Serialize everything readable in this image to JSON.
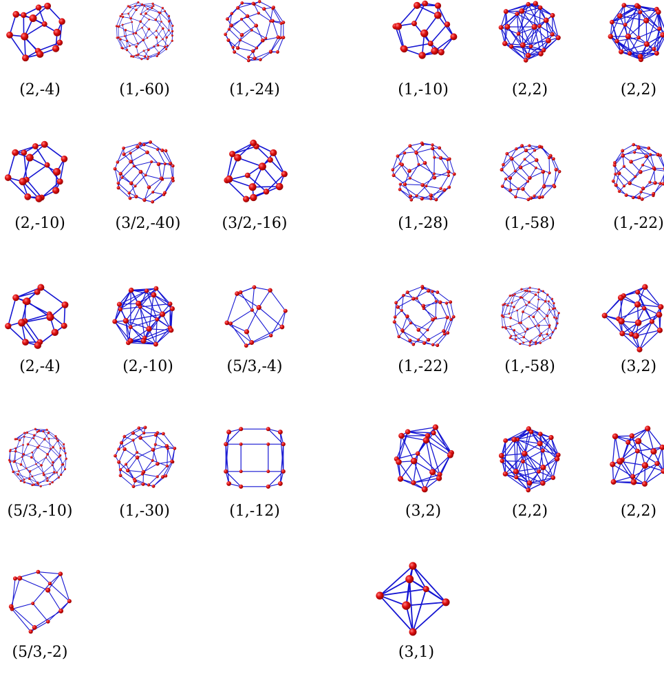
{
  "colors": {
    "edge": "#1414d2",
    "vertex": "#e01010",
    "vertex_dark": "#8a0000",
    "text": "#000000"
  },
  "figures": [
    {
      "label": "(2,-4)",
      "style": "sparse"
    },
    {
      "label": "(1,-60)",
      "style": "fine"
    },
    {
      "label": "(1,-24)",
      "style": "medium"
    },
    {
      "label": "(1,-10)",
      "style": "sparse"
    },
    {
      "label": "(2,2)",
      "style": "dense"
    },
    {
      "label": "(2,2)",
      "style": "dense"
    },
    {
      "label": "(2,-10)",
      "style": "sparse"
    },
    {
      "label": "(3/2,-40)",
      "style": "medium"
    },
    {
      "label": "(3/2,-16)",
      "style": "sparse"
    },
    {
      "label": "(1,-28)",
      "style": "medium"
    },
    {
      "label": "(1,-58)",
      "style": "medium"
    },
    {
      "label": "(1,-22)",
      "style": "medium"
    },
    {
      "label": "(2,-4)",
      "style": "sparse"
    },
    {
      "label": "(2,-10)",
      "style": "dense"
    },
    {
      "label": "(5/3,-4)",
      "style": "open"
    },
    {
      "label": "(1,-22)",
      "style": "medium"
    },
    {
      "label": "(1,-58)",
      "style": "fine"
    },
    {
      "label": "(3,2)",
      "style": "star"
    },
    {
      "label": "(5/3,-10)",
      "style": "fine"
    },
    {
      "label": "(1,-30)",
      "style": "medium"
    },
    {
      "label": "(1,-12)",
      "style": "cube"
    },
    {
      "label": "(3,2)",
      "style": "star"
    },
    {
      "label": "(2,2)",
      "style": "dense"
    },
    {
      "label": "(2,2)",
      "style": "star"
    },
    {
      "label": "(5/3,-2)",
      "style": "open"
    },
    {
      "label": "(3,1)",
      "style": "bipyramid"
    }
  ]
}
